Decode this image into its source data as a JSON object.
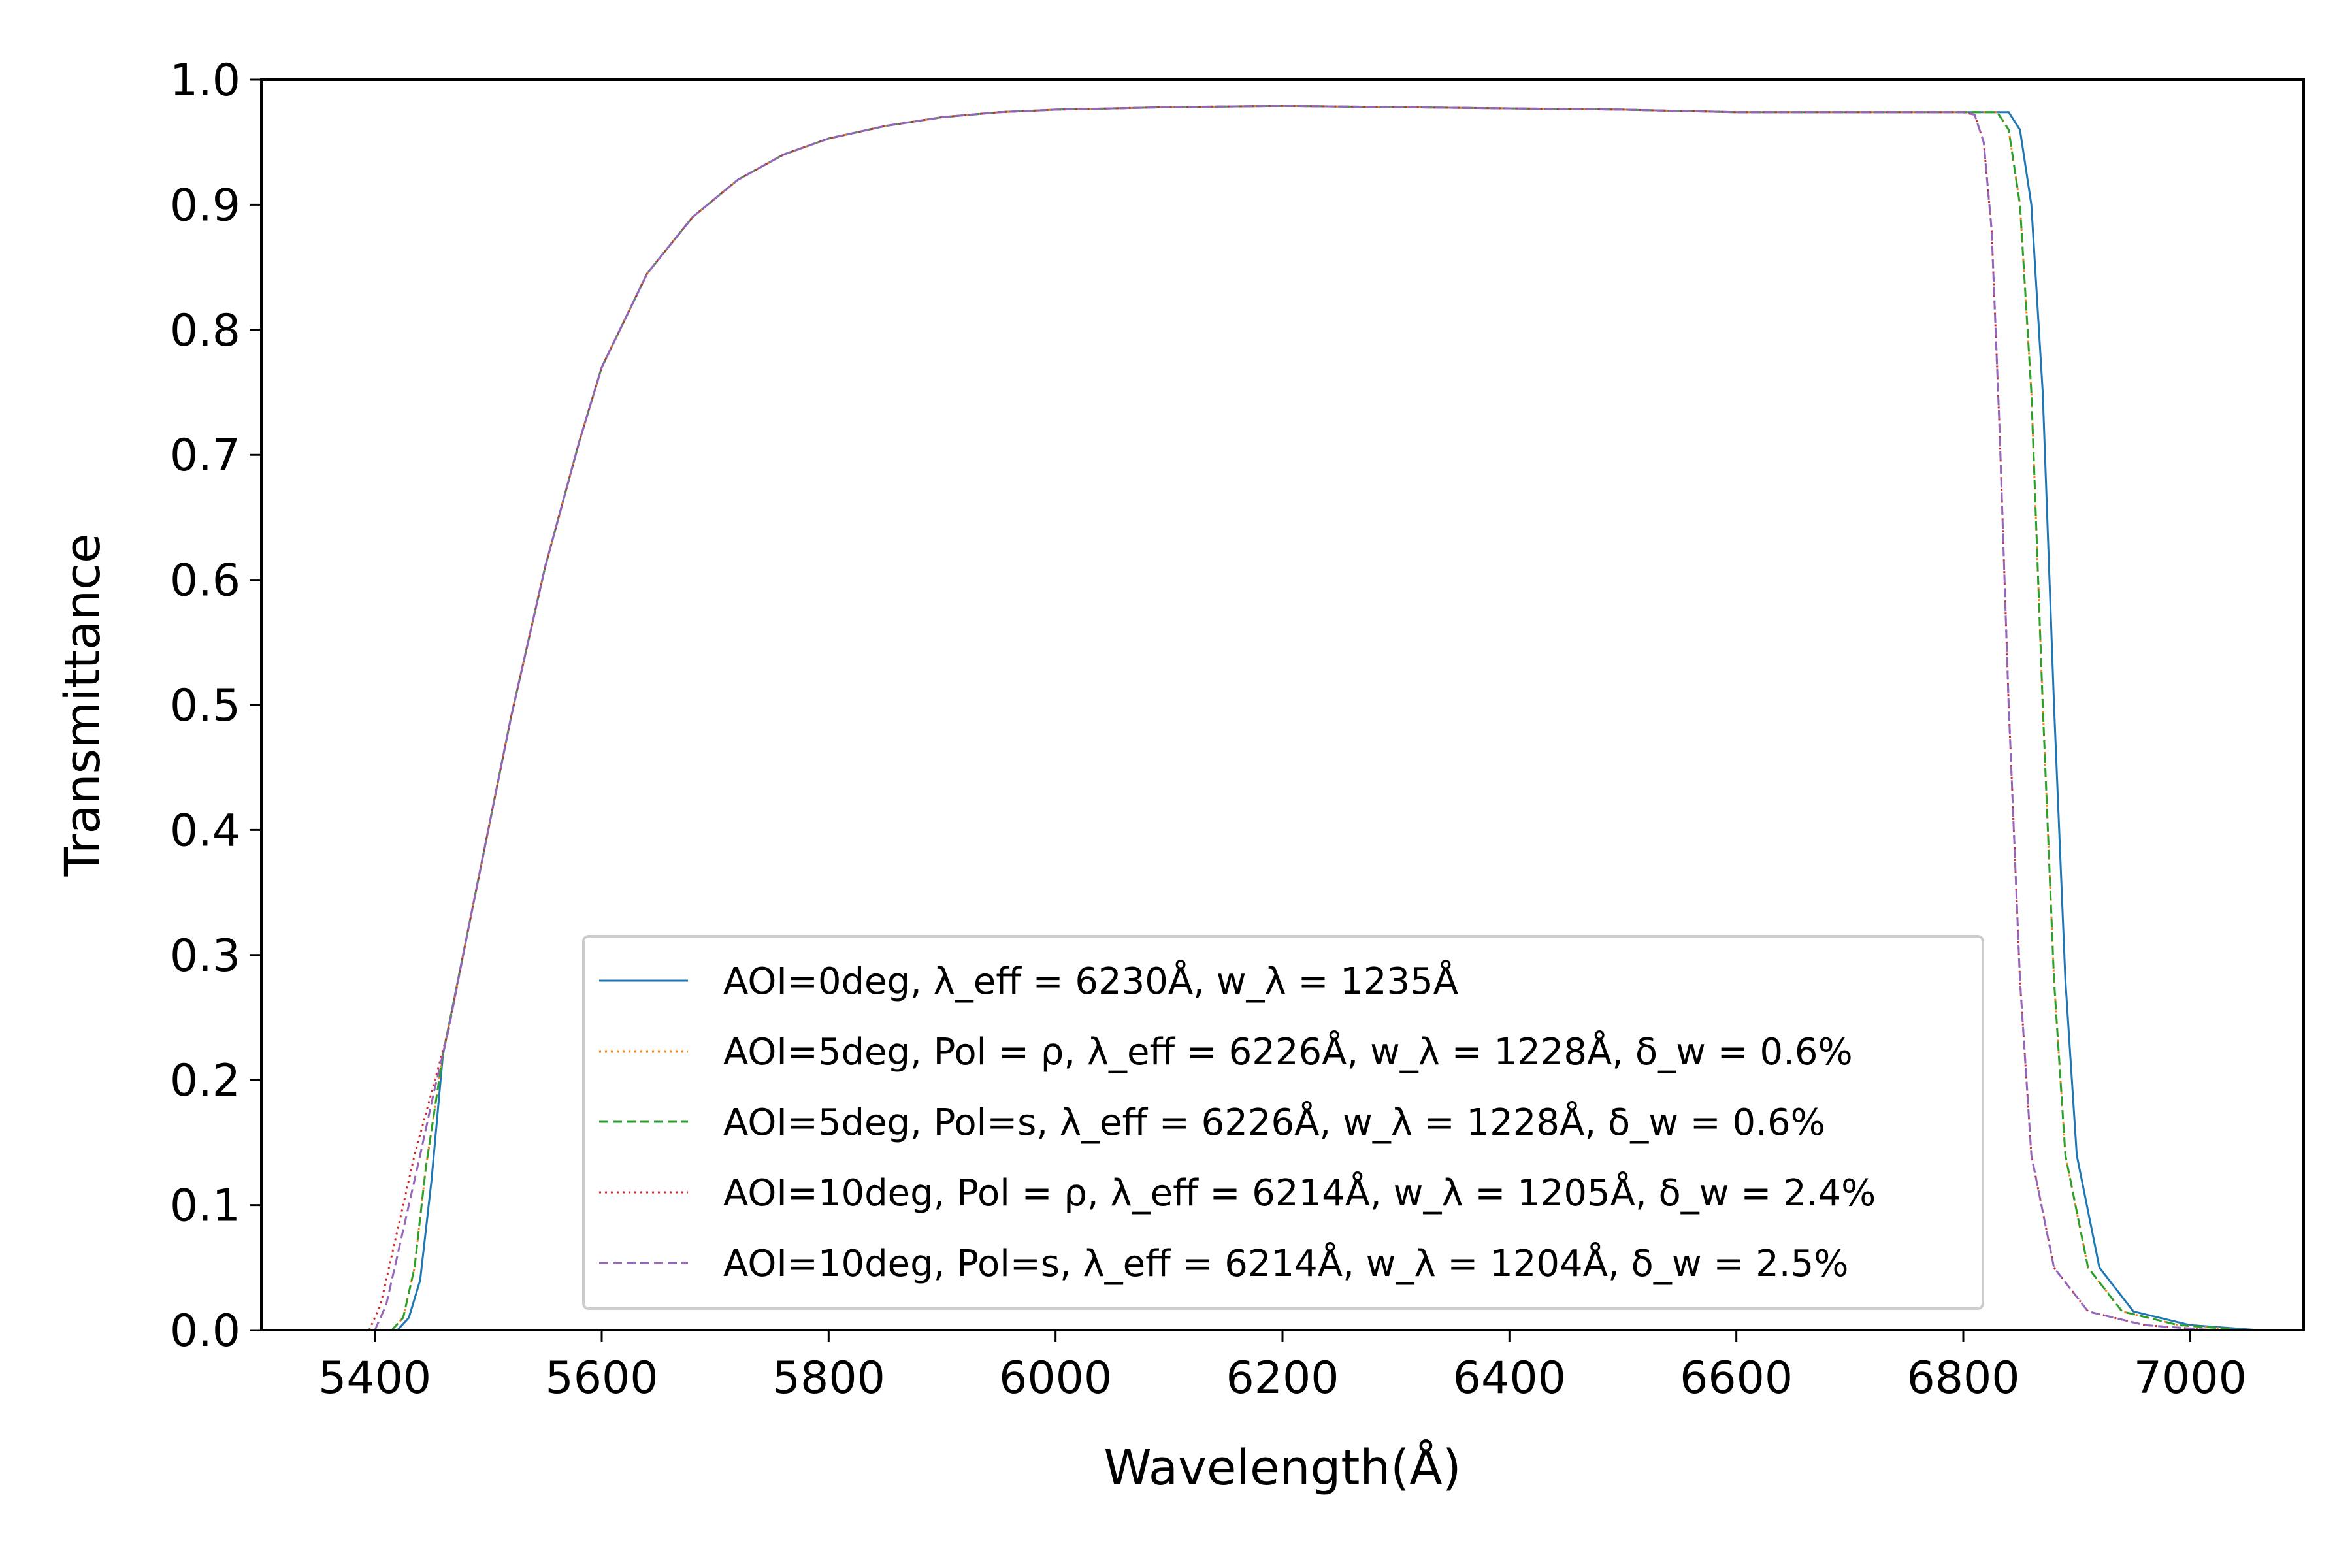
{
  "chart_data": {
    "type": "line",
    "xlabel": "Wavelength(Å)",
    "ylabel": "Transmittance",
    "xlim": [
      5300,
      7100
    ],
    "ylim": [
      0.0,
      1.0
    ],
    "x_ticks": [
      5400,
      5600,
      5800,
      6000,
      6200,
      6400,
      6600,
      6800,
      7000
    ],
    "y_ticks": [
      "0.0",
      "0.1",
      "0.2",
      "0.3",
      "0.4",
      "0.5",
      "0.6",
      "0.7",
      "0.8",
      "0.9",
      "1.0"
    ],
    "grid": false,
    "legend_position": "lower-center",
    "series": [
      {
        "legend": "AOI=0deg, λ_eff = 6230Å, w_λ = 1235Å",
        "color": "#1f77b4",
        "style": "solid",
        "points": [
          [
            5420,
            0.0
          ],
          [
            5430,
            0.01
          ],
          [
            5440,
            0.04
          ],
          [
            5450,
            0.12
          ],
          [
            5460,
            0.22
          ],
          [
            5480,
            0.31
          ],
          [
            5500,
            0.4
          ],
          [
            5520,
            0.49
          ],
          [
            5550,
            0.61
          ],
          [
            5580,
            0.71
          ],
          [
            5600,
            0.77
          ],
          [
            5640,
            0.845
          ],
          [
            5680,
            0.89
          ],
          [
            5720,
            0.92
          ],
          [
            5760,
            0.94
          ],
          [
            5800,
            0.953
          ],
          [
            5850,
            0.963
          ],
          [
            5900,
            0.97
          ],
          [
            5950,
            0.974
          ],
          [
            6000,
            0.976
          ],
          [
            6100,
            0.978
          ],
          [
            6200,
            0.979
          ],
          [
            6300,
            0.978
          ],
          [
            6400,
            0.977
          ],
          [
            6500,
            0.976
          ],
          [
            6600,
            0.974
          ],
          [
            6700,
            0.974
          ],
          [
            6800,
            0.974
          ],
          [
            6840,
            0.974
          ],
          [
            6850,
            0.96
          ],
          [
            6860,
            0.9
          ],
          [
            6870,
            0.75
          ],
          [
            6880,
            0.5
          ],
          [
            6890,
            0.28
          ],
          [
            6900,
            0.14
          ],
          [
            6920,
            0.05
          ],
          [
            6950,
            0.015
          ],
          [
            7000,
            0.004
          ],
          [
            7060,
            0.0
          ]
        ]
      },
      {
        "legend": "AOI=5deg, Pol = ρ, λ_eff = 6226Å, w_λ = 1228Å, δ_w = 0.6%",
        "color": "#ff7f0e",
        "style": "dotted",
        "points": [
          [
            5415,
            0.0
          ],
          [
            5425,
            0.01
          ],
          [
            5435,
            0.05
          ],
          [
            5445,
            0.13
          ],
          [
            5460,
            0.22
          ],
          [
            5480,
            0.31
          ],
          [
            5500,
            0.4
          ],
          [
            5520,
            0.49
          ],
          [
            5550,
            0.61
          ],
          [
            5580,
            0.71
          ],
          [
            5600,
            0.77
          ],
          [
            5640,
            0.845
          ],
          [
            5680,
            0.89
          ],
          [
            5720,
            0.92
          ],
          [
            5760,
            0.94
          ],
          [
            5800,
            0.953
          ],
          [
            5850,
            0.963
          ],
          [
            5900,
            0.97
          ],
          [
            5950,
            0.974
          ],
          [
            6000,
            0.976
          ],
          [
            6100,
            0.978
          ],
          [
            6200,
            0.979
          ],
          [
            6300,
            0.978
          ],
          [
            6400,
            0.977
          ],
          [
            6500,
            0.976
          ],
          [
            6600,
            0.974
          ],
          [
            6700,
            0.974
          ],
          [
            6800,
            0.974
          ],
          [
            6830,
            0.974
          ],
          [
            6840,
            0.96
          ],
          [
            6850,
            0.9
          ],
          [
            6860,
            0.75
          ],
          [
            6870,
            0.5
          ],
          [
            6880,
            0.28
          ],
          [
            6890,
            0.14
          ],
          [
            6910,
            0.05
          ],
          [
            6940,
            0.015
          ],
          [
            6990,
            0.004
          ],
          [
            7050,
            0.0
          ]
        ]
      },
      {
        "legend": "AOI=5deg, Pol=s, λ_eff = 6226Å, w_λ = 1228Å, δ_w = 0.6%",
        "color": "#2ca02c",
        "style": "dashed",
        "points": [
          [
            5415,
            0.0
          ],
          [
            5425,
            0.01
          ],
          [
            5435,
            0.05
          ],
          [
            5445,
            0.13
          ],
          [
            5460,
            0.22
          ],
          [
            5480,
            0.31
          ],
          [
            5500,
            0.4
          ],
          [
            5520,
            0.49
          ],
          [
            5550,
            0.61
          ],
          [
            5580,
            0.71
          ],
          [
            5600,
            0.77
          ],
          [
            5640,
            0.845
          ],
          [
            5680,
            0.89
          ],
          [
            5720,
            0.92
          ],
          [
            5760,
            0.94
          ],
          [
            5800,
            0.953
          ],
          [
            5850,
            0.963
          ],
          [
            5900,
            0.97
          ],
          [
            5950,
            0.974
          ],
          [
            6000,
            0.976
          ],
          [
            6100,
            0.978
          ],
          [
            6200,
            0.979
          ],
          [
            6300,
            0.978
          ],
          [
            6400,
            0.977
          ],
          [
            6500,
            0.976
          ],
          [
            6600,
            0.974
          ],
          [
            6700,
            0.974
          ],
          [
            6800,
            0.974
          ],
          [
            6830,
            0.974
          ],
          [
            6840,
            0.96
          ],
          [
            6850,
            0.9
          ],
          [
            6860,
            0.75
          ],
          [
            6870,
            0.5
          ],
          [
            6880,
            0.28
          ],
          [
            6890,
            0.14
          ],
          [
            6910,
            0.05
          ],
          [
            6940,
            0.015
          ],
          [
            6990,
            0.004
          ],
          [
            7050,
            0.0
          ]
        ]
      },
      {
        "legend": "AOI=10deg, Pol = ρ, λ_eff = 6214Å, w_λ = 1205Å, δ_w = 2.4%",
        "color": "#d62728",
        "style": "dotted",
        "points": [
          [
            5395,
            0.0
          ],
          [
            5405,
            0.02
          ],
          [
            5420,
            0.08
          ],
          [
            5435,
            0.14
          ],
          [
            5450,
            0.19
          ],
          [
            5465,
            0.24
          ],
          [
            5480,
            0.31
          ],
          [
            5500,
            0.4
          ],
          [
            5520,
            0.49
          ],
          [
            5550,
            0.61
          ],
          [
            5580,
            0.71
          ],
          [
            5600,
            0.77
          ],
          [
            5640,
            0.845
          ],
          [
            5680,
            0.89
          ],
          [
            5720,
            0.92
          ],
          [
            5760,
            0.94
          ],
          [
            5800,
            0.953
          ],
          [
            5850,
            0.963
          ],
          [
            5900,
            0.97
          ],
          [
            5950,
            0.974
          ],
          [
            6000,
            0.976
          ],
          [
            6100,
            0.978
          ],
          [
            6200,
            0.979
          ],
          [
            6300,
            0.978
          ],
          [
            6400,
            0.977
          ],
          [
            6500,
            0.976
          ],
          [
            6600,
            0.974
          ],
          [
            6700,
            0.974
          ],
          [
            6800,
            0.974
          ],
          [
            6810,
            0.972
          ],
          [
            6818,
            0.95
          ],
          [
            6825,
            0.88
          ],
          [
            6832,
            0.72
          ],
          [
            6840,
            0.5
          ],
          [
            6850,
            0.28
          ],
          [
            6860,
            0.14
          ],
          [
            6880,
            0.05
          ],
          [
            6910,
            0.015
          ],
          [
            6960,
            0.004
          ],
          [
            7020,
            0.0
          ]
        ]
      },
      {
        "legend": "AOI=10deg, Pol=s, λ_eff = 6214Å, w_λ = 1204Å, δ_w = 2.5%",
        "color": "#9467bd",
        "style": "dashed",
        "points": [
          [
            5400,
            0.0
          ],
          [
            5410,
            0.02
          ],
          [
            5425,
            0.08
          ],
          [
            5440,
            0.14
          ],
          [
            5452,
            0.19
          ],
          [
            5465,
            0.24
          ],
          [
            5480,
            0.31
          ],
          [
            5500,
            0.4
          ],
          [
            5520,
            0.49
          ],
          [
            5550,
            0.61
          ],
          [
            5580,
            0.71
          ],
          [
            5600,
            0.77
          ],
          [
            5640,
            0.845
          ],
          [
            5680,
            0.89
          ],
          [
            5720,
            0.92
          ],
          [
            5760,
            0.94
          ],
          [
            5800,
            0.953
          ],
          [
            5850,
            0.963
          ],
          [
            5900,
            0.97
          ],
          [
            5950,
            0.974
          ],
          [
            6000,
            0.976
          ],
          [
            6100,
            0.978
          ],
          [
            6200,
            0.979
          ],
          [
            6300,
            0.978
          ],
          [
            6400,
            0.977
          ],
          [
            6500,
            0.976
          ],
          [
            6600,
            0.974
          ],
          [
            6700,
            0.974
          ],
          [
            6800,
            0.974
          ],
          [
            6810,
            0.972
          ],
          [
            6818,
            0.95
          ],
          [
            6825,
            0.88
          ],
          [
            6832,
            0.72
          ],
          [
            6840,
            0.5
          ],
          [
            6850,
            0.28
          ],
          [
            6860,
            0.14
          ],
          [
            6880,
            0.05
          ],
          [
            6910,
            0.015
          ],
          [
            6960,
            0.004
          ],
          [
            7020,
            0.0
          ]
        ]
      }
    ]
  }
}
